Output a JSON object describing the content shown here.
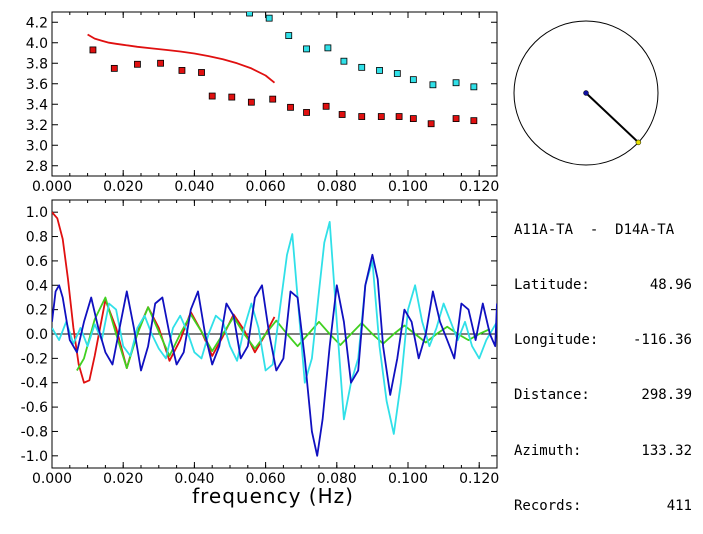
{
  "station_info": {
    "pair": "A11A-TA  -  D14A-TA",
    "rows": [
      {
        "label": "Latitude:",
        "value": "48.96"
      },
      {
        "label": "Longitude:",
        "value": "-116.36"
      },
      {
        "label": "Distance:",
        "value": "298.39"
      },
      {
        "label": "Azimuth:",
        "value": "133.32"
      },
      {
        "label": "Records:",
        "value": "411"
      }
    ]
  },
  "colors": {
    "red": "#e01010",
    "cyan": "#30e0e8",
    "blue": "#1010c0",
    "green": "#40d020",
    "black": "#000000"
  },
  "chart_data": [
    {
      "type": "scatter",
      "xlim": [
        0.0,
        0.125
      ],
      "ylim": [
        2.7,
        4.3
      ],
      "xticks": [
        "0.000",
        "0.020",
        "0.040",
        "0.060",
        "0.080",
        "0.100",
        "0.120"
      ],
      "yticks": [
        "2.8",
        "3.0",
        "3.2",
        "3.4",
        "3.6",
        "3.8",
        "4.0",
        "4.2"
      ],
      "series": [
        {
          "color": "red",
          "marker": "square",
          "x": [
            0.0115,
            0.0175,
            0.024,
            0.0305,
            0.0365,
            0.042,
            0.045,
            0.0505,
            0.056,
            0.062,
            0.067,
            0.0715,
            0.077,
            0.0815,
            0.087,
            0.0925,
            0.0975,
            0.1015,
            0.1065,
            0.1135,
            0.1185
          ],
          "y": [
            3.93,
            3.75,
            3.79,
            3.8,
            3.73,
            3.71,
            3.48,
            3.47,
            3.42,
            3.45,
            3.37,
            3.32,
            3.38,
            3.3,
            3.28,
            3.28,
            3.28,
            3.26,
            3.21,
            3.26,
            3.24
          ]
        },
        {
          "color": "cyan",
          "marker": "square",
          "x": [
            0.0555,
            0.061,
            0.0665,
            0.0715,
            0.0775,
            0.082,
            0.087,
            0.092,
            0.097,
            0.1015,
            0.107,
            0.1135,
            0.1185
          ],
          "y": [
            4.29,
            4.24,
            4.07,
            3.94,
            3.95,
            3.82,
            3.76,
            3.73,
            3.7,
            3.64,
            3.59,
            3.61,
            3.57
          ]
        },
        {
          "color": "red",
          "marker": "line",
          "x": [
            0.01,
            0.012,
            0.014,
            0.016,
            0.018,
            0.02,
            0.024,
            0.028,
            0.032,
            0.036,
            0.04,
            0.044,
            0.048,
            0.052,
            0.056,
            0.06,
            0.0625
          ],
          "y": [
            4.08,
            4.04,
            4.02,
            4.0,
            3.99,
            3.98,
            3.96,
            3.945,
            3.93,
            3.915,
            3.895,
            3.87,
            3.84,
            3.8,
            3.75,
            3.68,
            3.61
          ]
        }
      ]
    },
    {
      "type": "line",
      "xlim": [
        0.0,
        0.125
      ],
      "ylim": [
        -1.1,
        1.1
      ],
      "xticks": [
        "0.000",
        "0.020",
        "0.040",
        "0.060",
        "0.080",
        "0.100",
        "0.120"
      ],
      "yticks": [
        "-1.0",
        "-0.8",
        "-0.6",
        "-0.4",
        "-0.2",
        "0.0",
        "0.2",
        "0.4",
        "0.6",
        "0.8",
        "1.0"
      ],
      "xlabel": "frequency (Hz)",
      "series": [
        {
          "color": "red",
          "x": [
            0,
            0.0015,
            0.003,
            0.0045,
            0.006,
            0.0075,
            0.009,
            0.0105,
            0.012,
            0.015,
            0.018,
            0.021,
            0.024,
            0.027,
            0.03,
            0.033,
            0.036,
            0.039,
            0.042,
            0.045,
            0.048,
            0.051,
            0.054,
            0.057,
            0.06,
            0.0625
          ],
          "y": [
            1.0,
            0.95,
            0.78,
            0.45,
            0.05,
            -0.25,
            -0.4,
            -0.38,
            -0.18,
            0.28,
            0.05,
            -0.28,
            0.02,
            0.22,
            0.05,
            -0.22,
            -0.05,
            0.18,
            0.02,
            -0.18,
            -0.02,
            0.16,
            0.03,
            -0.15,
            0.0,
            0.14
          ]
        },
        {
          "color": "green",
          "x": [
            0.007,
            0.009,
            0.012,
            0.015,
            0.018,
            0.021,
            0.024,
            0.027,
            0.03,
            0.033,
            0.036,
            0.039,
            0.042,
            0.045,
            0.048,
            0.051,
            0.054,
            0.057,
            0.06,
            0.063,
            0.066,
            0.069,
            0.072,
            0.075,
            0.078,
            0.081,
            0.084,
            0.087,
            0.09,
            0.093,
            0.096,
            0.099,
            0.102,
            0.105,
            0.108,
            0.111,
            0.114,
            0.117,
            0.12,
            0.123
          ],
          "y": [
            -0.3,
            -0.2,
            0.12,
            0.3,
            0.0,
            -0.28,
            0.0,
            0.22,
            0.02,
            -0.18,
            0.0,
            0.16,
            0.02,
            -0.14,
            0.0,
            0.14,
            0.0,
            -0.12,
            0.0,
            0.11,
            0.0,
            -0.1,
            0.0,
            0.1,
            0.0,
            -0.09,
            0.0,
            0.09,
            0.0,
            -0.08,
            0.0,
            0.07,
            0.0,
            -0.07,
            0.0,
            0.06,
            0.0,
            -0.05,
            0.0,
            0.04
          ]
        },
        {
          "color": "cyan",
          "x": [
            0,
            0.002,
            0.004,
            0.006,
            0.008,
            0.01,
            0.012,
            0.014,
            0.016,
            0.018,
            0.02,
            0.022,
            0.024,
            0.026,
            0.028,
            0.03,
            0.032,
            0.034,
            0.036,
            0.038,
            0.04,
            0.042,
            0.044,
            0.046,
            0.048,
            0.05,
            0.052,
            0.054,
            0.056,
            0.058,
            0.06,
            0.062,
            0.064,
            0.066,
            0.0675,
            0.069,
            0.071,
            0.073,
            0.075,
            0.0765,
            0.078,
            0.08,
            0.082,
            0.084,
            0.086,
            0.088,
            0.09,
            0.092,
            0.094,
            0.096,
            0.098,
            0.1,
            0.102,
            0.104,
            0.106,
            0.108,
            0.11,
            0.112,
            0.114,
            0.116,
            0.118,
            0.12,
            0.122,
            0.124,
            0.125
          ],
          "y": [
            0.05,
            -0.05,
            0.1,
            -0.08,
            0.05,
            -0.1,
            0.08,
            -0.05,
            0.25,
            0.2,
            -0.1,
            -0.18,
            0.05,
            0.15,
            0.0,
            -0.12,
            -0.2,
            0.05,
            0.15,
            0.02,
            -0.15,
            -0.2,
            0.0,
            0.15,
            0.1,
            -0.1,
            -0.22,
            0.05,
            0.25,
            0.05,
            -0.3,
            -0.25,
            0.2,
            0.65,
            0.82,
            0.3,
            -0.4,
            -0.2,
            0.35,
            0.75,
            0.92,
            0.1,
            -0.7,
            -0.4,
            -0.2,
            0.4,
            0.6,
            -0.1,
            -0.55,
            -0.82,
            -0.4,
            0.2,
            0.4,
            0.1,
            -0.1,
            0.05,
            0.25,
            0.1,
            -0.05,
            0.1,
            -0.1,
            -0.2,
            -0.05,
            0.05,
            0.1
          ]
        },
        {
          "color": "blue",
          "x": [
            0,
            0.001,
            0.002,
            0.003,
            0.005,
            0.007,
            0.009,
            0.011,
            0.013,
            0.015,
            0.017,
            0.019,
            0.021,
            0.023,
            0.025,
            0.027,
            0.029,
            0.031,
            0.033,
            0.035,
            0.037,
            0.039,
            0.041,
            0.043,
            0.045,
            0.047,
            0.049,
            0.051,
            0.053,
            0.055,
            0.057,
            0.059,
            0.061,
            0.063,
            0.065,
            0.067,
            0.069,
            0.071,
            0.073,
            0.0745,
            0.076,
            0.078,
            0.08,
            0.082,
            0.084,
            0.086,
            0.088,
            0.09,
            0.0915,
            0.093,
            0.095,
            0.097,
            0.099,
            0.101,
            0.103,
            0.105,
            0.107,
            0.109,
            0.111,
            0.113,
            0.115,
            0.117,
            0.119,
            0.121,
            0.123,
            0.1245,
            0.125
          ],
          "y": [
            0.1,
            0.35,
            0.4,
            0.3,
            -0.05,
            -0.15,
            0.1,
            0.3,
            0.05,
            -0.15,
            -0.25,
            0.05,
            0.35,
            0.05,
            -0.3,
            -0.1,
            0.25,
            0.3,
            0.0,
            -0.25,
            -0.15,
            0.2,
            0.35,
            0.0,
            -0.25,
            -0.1,
            0.25,
            0.15,
            -0.2,
            -0.1,
            0.3,
            0.4,
            0.0,
            -0.3,
            -0.2,
            0.35,
            0.3,
            -0.2,
            -0.8,
            -1.0,
            -0.7,
            -0.1,
            0.4,
            0.1,
            -0.4,
            -0.3,
            0.4,
            0.65,
            0.45,
            -0.1,
            -0.5,
            -0.2,
            0.2,
            0.1,
            -0.2,
            0.0,
            0.35,
            0.1,
            -0.05,
            -0.2,
            0.25,
            0.2,
            -0.05,
            0.25,
            0.0,
            -0.1,
            0.25
          ]
        }
      ]
    }
  ],
  "inset": {
    "azimuth": 133.32,
    "colors": {
      "center": "#1010a0",
      "end": "#e8e000"
    }
  }
}
